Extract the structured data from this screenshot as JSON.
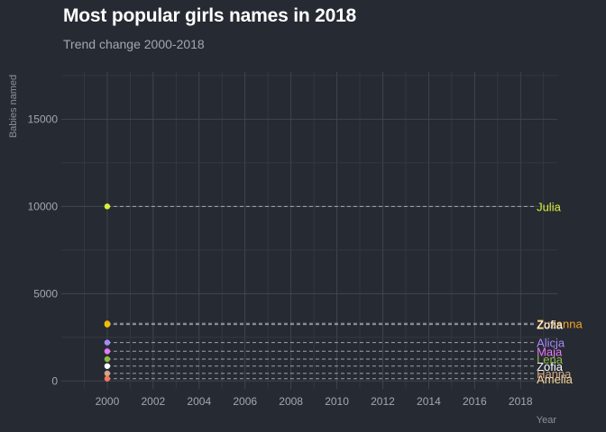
{
  "chart_data": {
    "type": "scatter",
    "title": "Most popular girls names in 2018",
    "subtitle": "Trend change 2000-2018",
    "xlabel": "Year",
    "ylabel": "Babies named",
    "x_ticks": [
      2000,
      2002,
      2004,
      2006,
      2008,
      2010,
      2012,
      2014,
      2016,
      2018
    ],
    "y_ticks": [
      0,
      5000,
      10000,
      15000
    ],
    "xlim": [
      1998.0,
      2019.6
    ],
    "ylim": [
      -450,
      17700
    ],
    "grid": true,
    "legend": "none",
    "series": [
      {
        "name": "Julia",
        "color": "#d9f03a",
        "points": [
          {
            "x": 2000,
            "y": 10000
          }
        ],
        "label_value": 10000
      },
      {
        "name": "Zuzanna",
        "color": "#f5a623",
        "points": [
          {
            "x": 2000,
            "y": 3300
          }
        ],
        "label_value": 3300
      },
      {
        "name": "Zofia",
        "color": "#f0c000",
        "points": [
          {
            "x": 2000,
            "y": 3230
          }
        ],
        "label_value": 3230
      },
      {
        "name": "Alicja",
        "color": "#a78bfa",
        "points": [
          {
            "x": 2000,
            "y": 2200
          }
        ],
        "label_value": 2200
      },
      {
        "name": "Maja",
        "color": "#e879f9",
        "points": [
          {
            "x": 2000,
            "y": 1700
          }
        ],
        "label_value": 1700
      },
      {
        "name": "Lena",
        "color": "#8fbc3f",
        "points": [
          {
            "x": 2000,
            "y": 1250
          }
        ],
        "label_value": 1250
      },
      {
        "name": "Zofia",
        "color": "#ffffff",
        "points": [
          {
            "x": 2000,
            "y": 850
          }
        ],
        "label_value": 850
      },
      {
        "name": "Hanna",
        "color": "#d4a58a",
        "points": [
          {
            "x": 2000,
            "y": 430
          }
        ],
        "label_value": 430
      },
      {
        "name": "Amelia",
        "color": "#f47560",
        "points": [
          {
            "x": 2000,
            "y": 130
          }
        ],
        "label_value": 130
      }
    ],
    "label_colors": {
      "Julia": "#d9f03a",
      "Zuzanna": "#f5a623",
      "Alicja": "#a78bfa",
      "Maja": "#e879f9",
      "Lena": "#8fbc3f",
      "Zofia": "#ffffff",
      "Hanna": "#d4a58a",
      "Amelia": "#f9d89c"
    }
  }
}
